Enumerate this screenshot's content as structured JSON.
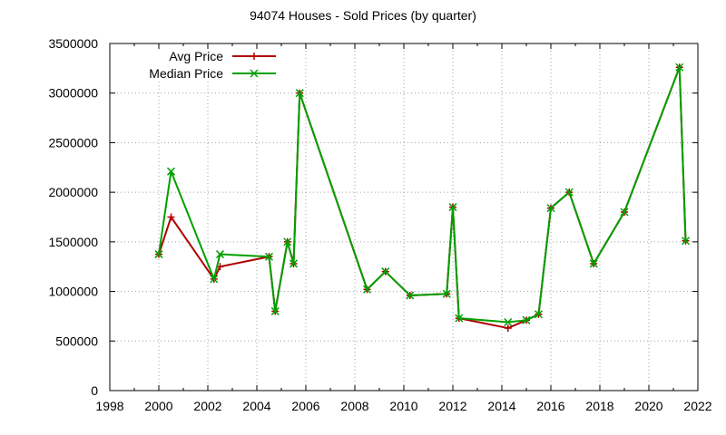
{
  "chart_data": {
    "type": "line",
    "title": "94074 Houses - Sold Prices (by quarter)",
    "xlabel": "",
    "ylabel": "",
    "xlim": [
      1998,
      2022
    ],
    "ylim": [
      0,
      3500000
    ],
    "x_ticks": [
      1998,
      2000,
      2002,
      2004,
      2006,
      2008,
      2010,
      2012,
      2014,
      2016,
      2018,
      2020,
      2022
    ],
    "y_ticks": [
      0,
      500000,
      1000000,
      1500000,
      2000000,
      2500000,
      3000000,
      3500000
    ],
    "grid": true,
    "legend_position": "top-left",
    "series": [
      {
        "name": "Avg Price",
        "color": "#b00000",
        "marker": "plus",
        "points": [
          [
            2000.0,
            1375000
          ],
          [
            2000.5,
            1750000
          ],
          [
            2002.25,
            1125000
          ],
          [
            2002.5,
            1250000
          ],
          [
            2004.5,
            1350000
          ],
          [
            2004.75,
            800000
          ],
          [
            2005.25,
            1500000
          ],
          [
            2005.5,
            1280000
          ],
          [
            2005.75,
            3000000
          ],
          [
            2008.5,
            1020000
          ],
          [
            2009.25,
            1200000
          ],
          [
            2010.25,
            960000
          ],
          [
            2011.75,
            975000
          ],
          [
            2012.0,
            1850000
          ],
          [
            2012.25,
            730000
          ],
          [
            2014.25,
            630000
          ],
          [
            2015.0,
            710000
          ],
          [
            2015.5,
            770000
          ],
          [
            2016.0,
            1840000
          ],
          [
            2016.75,
            2000000
          ],
          [
            2017.75,
            1280000
          ],
          [
            2019.0,
            1800000
          ],
          [
            2021.25,
            3260000
          ],
          [
            2021.5,
            1510000
          ]
        ]
      },
      {
        "name": "Median Price",
        "color": "#00a000",
        "marker": "cross",
        "points": [
          [
            2000.0,
            1375000
          ],
          [
            2000.5,
            2210000
          ],
          [
            2002.25,
            1125000
          ],
          [
            2002.5,
            1375000
          ],
          [
            2004.5,
            1350000
          ],
          [
            2004.75,
            800000
          ],
          [
            2005.25,
            1500000
          ],
          [
            2005.5,
            1280000
          ],
          [
            2005.75,
            3000000
          ],
          [
            2008.5,
            1020000
          ],
          [
            2009.25,
            1200000
          ],
          [
            2010.25,
            960000
          ],
          [
            2011.75,
            975000
          ],
          [
            2012.0,
            1850000
          ],
          [
            2012.25,
            730000
          ],
          [
            2014.25,
            690000
          ],
          [
            2015.0,
            710000
          ],
          [
            2015.5,
            770000
          ],
          [
            2016.0,
            1840000
          ],
          [
            2016.75,
            2000000
          ],
          [
            2017.75,
            1280000
          ],
          [
            2019.0,
            1800000
          ],
          [
            2021.25,
            3260000
          ],
          [
            2021.5,
            1510000
          ]
        ]
      }
    ]
  }
}
